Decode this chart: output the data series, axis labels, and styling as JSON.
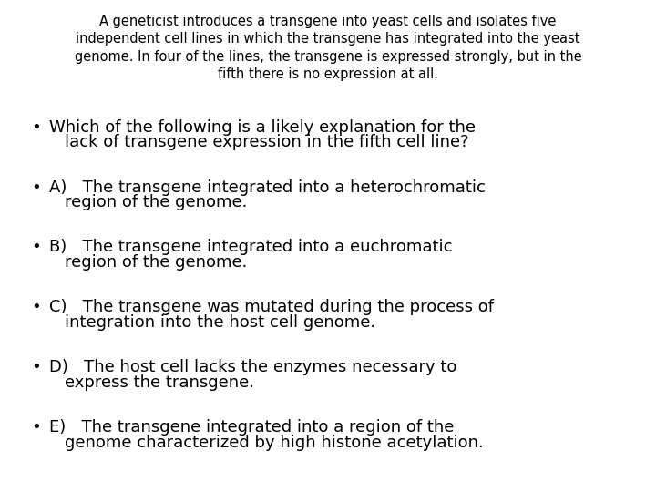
{
  "background_color": "#ffffff",
  "header_text": "A geneticist introduces a transgene into yeast cells and isolates five\nindependent cell lines in which the transgene has integrated into the yeast\ngenome. In four of the lines, the transgene is expressed strongly, but in the\nfifth there is no expression at all.",
  "header_fontsize": 10.5,
  "header_font": "DejaVu Sans",
  "header_color": "#000000",
  "bullet_items": [
    {
      "line1": "Which of the following is a likely explanation for the",
      "line2": "lack of transgene expression in the fifth cell line?"
    },
    {
      "line1": "A)   The transgene integrated into a heterochromatic",
      "line2": "region of the genome."
    },
    {
      "line1": "B)   The transgene integrated into a euchromatic",
      "line2": "region of the genome."
    },
    {
      "line1": "C)   The transgene was mutated during the process of",
      "line2": "integration into the host cell genome."
    },
    {
      "line1": "D)   The host cell lacks the enzymes necessary to",
      "line2": "express the transgene."
    },
    {
      "line1": "E)   The transgene integrated into a region of the",
      "line2": "genome characterized by high histone acetylation."
    }
  ],
  "bullet_fontsize": 13.0,
  "bullet_color": "#000000",
  "bullet_font": "DejaVu Sans",
  "figsize": [
    7.2,
    5.4
  ],
  "dpi": 100
}
